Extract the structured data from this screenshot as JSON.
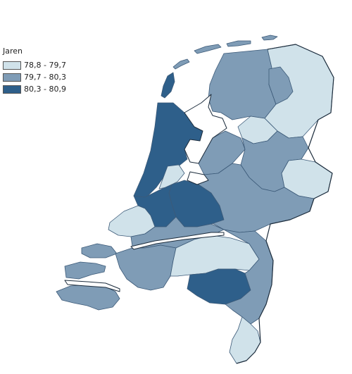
{
  "legend": {
    "title": "Jaren",
    "classes": [
      {
        "label": "78,8 - 79,7",
        "color": "#d0e2ea"
      },
      {
        "label": "79,7 - 80,3",
        "color": "#7f9cb6"
      },
      {
        "label": "80,3 - 80,9",
        "color": "#2e5f8a"
      }
    ]
  },
  "regions": [
    {
      "id": "groningen-oost",
      "class": 0
    },
    {
      "id": "groningen-west",
      "class": 1
    },
    {
      "id": "friesland",
      "class": 1
    },
    {
      "id": "drenthe",
      "class": 0
    },
    {
      "id": "overijssel",
      "class": 1
    },
    {
      "id": "twente",
      "class": 0
    },
    {
      "id": "flevoland",
      "class": 1
    },
    {
      "id": "gelderland",
      "class": 1
    },
    {
      "id": "noord-holland",
      "class": 2
    },
    {
      "id": "amsterdam",
      "class": 0
    },
    {
      "id": "utrecht",
      "class": 2
    },
    {
      "id": "zuid-holland",
      "class": 2
    },
    {
      "id": "rotterdam",
      "class": 0
    },
    {
      "id": "zuid-holland-zuid",
      "class": 1
    },
    {
      "id": "zeeland",
      "class": 1
    },
    {
      "id": "west-brabant",
      "class": 1
    },
    {
      "id": "midden-brabant",
      "class": 0
    },
    {
      "id": "zuidoost-brabant",
      "class": 2
    },
    {
      "id": "limburg-noord",
      "class": 1
    },
    {
      "id": "limburg-zuid",
      "class": 0
    }
  ]
}
